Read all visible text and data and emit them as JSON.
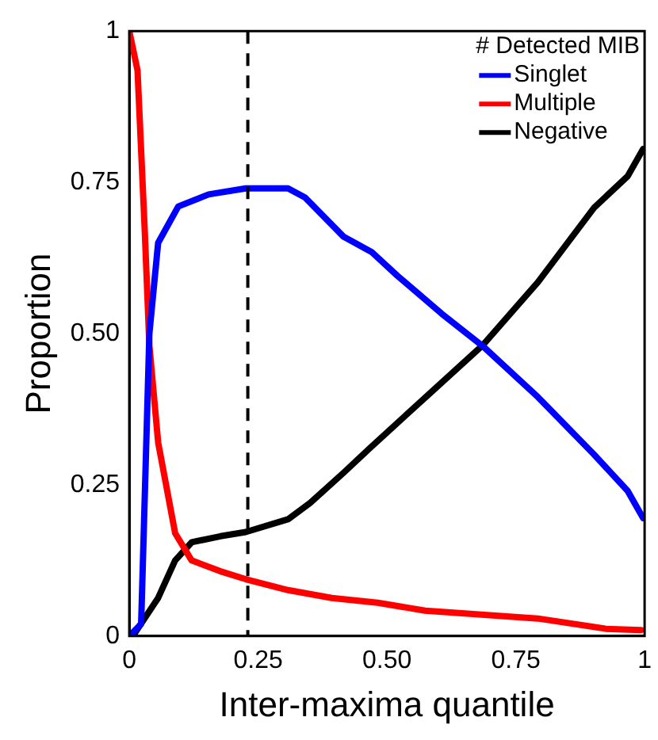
{
  "chart_data": {
    "type": "line",
    "xlabel": "Inter-maxima quantile",
    "ylabel": "Proportion",
    "legend_title": "# Detected MIB",
    "legend": "top right",
    "grid": false,
    "marker": "none",
    "line_style": "solid",
    "xlim": [
      0,
      1
    ],
    "xticks": [
      0,
      0.25,
      {
        "value": 0.5,
        "label": "0.50"
      },
      0.75,
      1
    ],
    "ylim": [
      0,
      1
    ],
    "yticks": [
      0,
      0.25,
      {
        "value": 0.5,
        "label": "0.50"
      },
      0.75,
      1
    ],
    "ref_lines": [
      {
        "axis": "x",
        "value": 0.23,
        "color": "#000000",
        "line_style": "dashed"
      }
    ],
    "series": [
      {
        "name": "Singlet",
        "color": "#0000ff",
        "x": [
          0,
          0.023,
          0.039,
          0.056,
          0.095,
          0.154,
          0.226,
          0.308,
          0.341,
          0.416,
          0.47,
          0.521,
          0.606,
          0.685,
          0.793,
          0.902,
          0.967,
          0.997
        ],
        "values": [
          0,
          0.02,
          0.5,
          0.65,
          0.71,
          0.73,
          0.74,
          0.74,
          0.725,
          0.66,
          0.635,
          0.595,
          0.533,
          0.48,
          0.395,
          0.3,
          0.24,
          0.195
        ]
      },
      {
        "name": "Multiple",
        "color": "#ff0000",
        "x": [
          0,
          0.016,
          0.03,
          0.039,
          0.056,
          0.089,
          0.121,
          0.177,
          0.226,
          0.308,
          0.393,
          0.482,
          0.574,
          0.793,
          0.925,
          0.993
        ],
        "values": [
          1,
          0.935,
          0.67,
          0.48,
          0.32,
          0.17,
          0.125,
          0.107,
          0.094,
          0.076,
          0.063,
          0.055,
          0.042,
          0.029,
          0.012,
          0.01
        ]
      },
      {
        "name": "Negative",
        "color": "#000000",
        "x": [
          0.007,
          0.056,
          0.089,
          0.121,
          0.177,
          0.226,
          0.308,
          0.351,
          0.416,
          0.466,
          0.574,
          0.685,
          0.793,
          0.902,
          0.967,
          0.997
        ],
        "values": [
          0,
          0.063,
          0.125,
          0.155,
          0.165,
          0.172,
          0.193,
          0.22,
          0.27,
          0.31,
          0.394,
          0.48,
          0.585,
          0.708,
          0.76,
          0.805
        ]
      }
    ]
  }
}
